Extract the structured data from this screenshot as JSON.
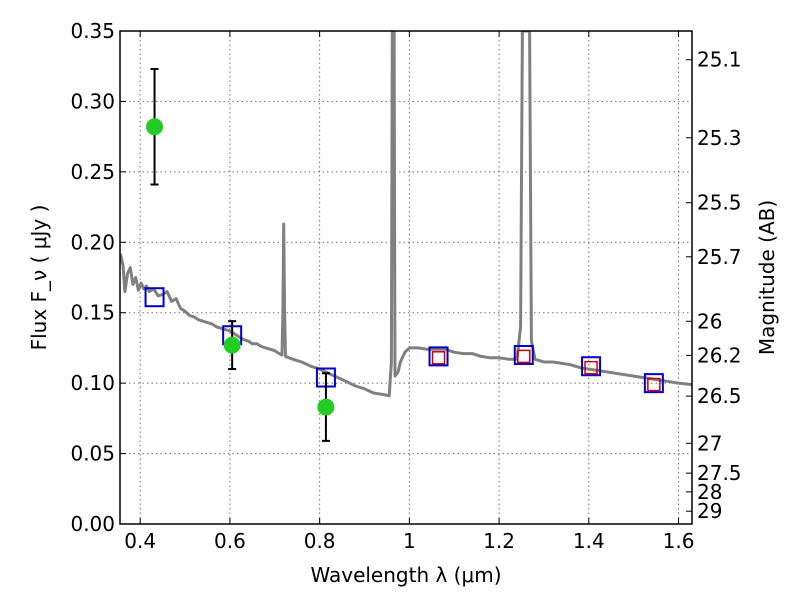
{
  "chart_data": {
    "type": "scatter",
    "xlabel": "Wavelength  λ (μm)",
    "ylabel": "Flux  F_ν  ( μJy )",
    "ylabel_right": "Magnitude (AB)",
    "xlim": [
      0.355,
      1.63
    ],
    "ylim": [
      0.0,
      0.35
    ],
    "grid": true,
    "x_ticks": [
      0.4,
      0.6,
      0.8,
      1.0,
      1.2,
      1.4,
      1.6
    ],
    "x_tick_labels": [
      "0.4",
      "0.6",
      "0.8",
      "1",
      "1.2",
      "1.4",
      "1.6"
    ],
    "y_ticks": [
      0.0,
      0.05,
      0.1,
      0.15,
      0.2,
      0.25,
      0.3,
      0.35
    ],
    "y_tick_labels": [
      "0.00",
      "0.05",
      "0.10",
      "0.15",
      "0.20",
      "0.25",
      "0.30",
      "0.35"
    ],
    "right_ticks": [
      {
        "label": "25.1",
        "flux": 0.3296
      },
      {
        "label": "25.3",
        "flux": 0.2742
      },
      {
        "label": "25.5",
        "flux": 0.2281
      },
      {
        "label": "25.7",
        "flux": 0.1897
      },
      {
        "label": "26",
        "flux": 0.1439
      },
      {
        "label": "26.2",
        "flux": 0.1197
      },
      {
        "label": "26.5",
        "flux": 0.0908
      },
      {
        "label": "27",
        "flux": 0.0573
      },
      {
        "label": "27.5",
        "flux": 0.0361
      },
      {
        "label": "28",
        "flux": 0.0228
      },
      {
        "label": "29",
        "flux": 0.0091
      }
    ],
    "series": [
      {
        "kind": "line",
        "color": "#808080",
        "points": [
          [
            0.356,
            0.192
          ],
          [
            0.362,
            0.183
          ],
          [
            0.366,
            0.165
          ],
          [
            0.372,
            0.178
          ],
          [
            0.378,
            0.182
          ],
          [
            0.384,
            0.17
          ],
          [
            0.39,
            0.175
          ],
          [
            0.396,
            0.166
          ],
          [
            0.402,
            0.171
          ],
          [
            0.408,
            0.167
          ],
          [
            0.414,
            0.169
          ],
          [
            0.42,
            0.165
          ],
          [
            0.43,
            0.167
          ],
          [
            0.44,
            0.162
          ],
          [
            0.45,
            0.163
          ],
          [
            0.46,
            0.165
          ],
          [
            0.47,
            0.158
          ],
          [
            0.48,
            0.16
          ],
          [
            0.49,
            0.153
          ],
          [
            0.5,
            0.151
          ],
          [
            0.51,
            0.148
          ],
          [
            0.52,
            0.147
          ],
          [
            0.53,
            0.145
          ],
          [
            0.54,
            0.144
          ],
          [
            0.55,
            0.143
          ],
          [
            0.56,
            0.142
          ],
          [
            0.57,
            0.14
          ],
          [
            0.58,
            0.139
          ],
          [
            0.59,
            0.138
          ],
          [
            0.6,
            0.137
          ],
          [
            0.61,
            0.135
          ],
          [
            0.62,
            0.133
          ],
          [
            0.63,
            0.131
          ],
          [
            0.64,
            0.13
          ],
          [
            0.65,
            0.128
          ],
          [
            0.66,
            0.128
          ],
          [
            0.67,
            0.126
          ],
          [
            0.68,
            0.125
          ],
          [
            0.69,
            0.124
          ],
          [
            0.7,
            0.123
          ],
          [
            0.71,
            0.121
          ],
          [
            0.716,
            0.12
          ],
          [
            0.718,
            0.15
          ],
          [
            0.72,
            0.213
          ],
          [
            0.722,
            0.15
          ],
          [
            0.724,
            0.119
          ],
          [
            0.74,
            0.117
          ],
          [
            0.76,
            0.115
          ],
          [
            0.78,
            0.112
          ],
          [
            0.8,
            0.11
          ],
          [
            0.82,
            0.107
          ],
          [
            0.84,
            0.104
          ],
          [
            0.86,
            0.101
          ],
          [
            0.88,
            0.098
          ],
          [
            0.9,
            0.096
          ],
          [
            0.92,
            0.093
          ],
          [
            0.94,
            0.092
          ],
          [
            0.955,
            0.091
          ],
          [
            0.96,
            0.115
          ],
          [
            0.962,
            0.35
          ],
          [
            0.966,
            0.35
          ],
          [
            0.968,
            0.105
          ],
          [
            0.975,
            0.108
          ],
          [
            0.98,
            0.115
          ],
          [
            0.99,
            0.122
          ],
          [
            1.0,
            0.125
          ],
          [
            1.02,
            0.125
          ],
          [
            1.04,
            0.124
          ],
          [
            1.06,
            0.124
          ],
          [
            1.08,
            0.124
          ],
          [
            1.1,
            0.122
          ],
          [
            1.12,
            0.121
          ],
          [
            1.14,
            0.121
          ],
          [
            1.16,
            0.119
          ],
          [
            1.18,
            0.118
          ],
          [
            1.2,
            0.118
          ],
          [
            1.22,
            0.117
          ],
          [
            1.24,
            0.117
          ],
          [
            1.248,
            0.14
          ],
          [
            1.252,
            0.35
          ],
          [
            1.268,
            0.35
          ],
          [
            1.272,
            0.13
          ],
          [
            1.28,
            0.117
          ],
          [
            1.3,
            0.115
          ],
          [
            1.32,
            0.115
          ],
          [
            1.34,
            0.114
          ],
          [
            1.36,
            0.113
          ],
          [
            1.38,
            0.111
          ],
          [
            1.4,
            0.11
          ],
          [
            1.42,
            0.109
          ],
          [
            1.44,
            0.108
          ],
          [
            1.46,
            0.107
          ],
          [
            1.48,
            0.106
          ],
          [
            1.5,
            0.105
          ],
          [
            1.52,
            0.104
          ],
          [
            1.54,
            0.103
          ],
          [
            1.56,
            0.102
          ],
          [
            1.58,
            0.101
          ],
          [
            1.6,
            0.1
          ],
          [
            1.63,
            0.099
          ]
        ]
      },
      {
        "kind": "scatter",
        "marker": "square",
        "color": "#0000cc",
        "points": [
          [
            0.432,
            0.161
          ],
          [
            0.605,
            0.134
          ],
          [
            0.814,
            0.104
          ],
          [
            1.065,
            0.119
          ],
          [
            1.255,
            0.12
          ],
          [
            1.405,
            0.112
          ],
          [
            1.545,
            0.1
          ]
        ]
      },
      {
        "kind": "scatter",
        "marker": "square-small",
        "color": "#cc0000",
        "points": [
          [
            1.065,
            0.118
          ],
          [
            1.255,
            0.119
          ],
          [
            1.405,
            0.111
          ],
          [
            1.545,
            0.099
          ]
        ]
      },
      {
        "kind": "scatter",
        "marker": "circle",
        "color": "#22cc22",
        "points": [
          [
            0.432,
            0.282
          ],
          [
            0.605,
            0.127
          ],
          [
            0.814,
            0.083
          ]
        ],
        "errors": [
          0.041,
          0.017,
          0.024
        ]
      }
    ]
  }
}
